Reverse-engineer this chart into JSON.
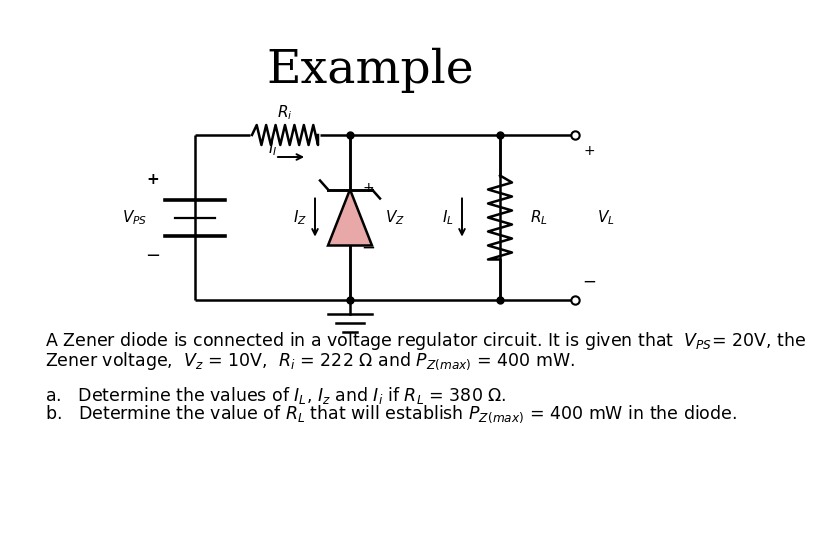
{
  "title": "Example",
  "title_fontsize": 34,
  "title_font": "serif",
  "bg_color": "#ffffff",
  "para_line1": "A Zener diode is connected in a voltage regulator circuit. It is given that  $V_{PS}$= 20V, the",
  "para_line2": "Zener voltage,  $V_z$ = 10V,  $R_i$ = 222 Ω and $P_{Z(max)}$ = 400 mW.",
  "question_a": "a.   Determine the values of $I_L$, $I_z$ and $I_i$ if $R_L$ = 380 Ω.",
  "question_b": "b.   Determine the value of $R_L$ that will establish $P_{Z(max)}$ = 400 mW in the diode.",
  "text_fontsize": 12.5,
  "zener_color": "#e8a8a8",
  "wire_lw": 1.8,
  "black": "#000000"
}
